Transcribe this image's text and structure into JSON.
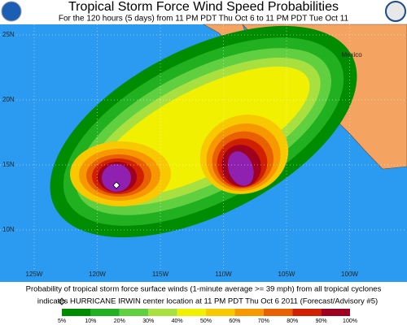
{
  "header": {
    "title": "Tropical Storm Force Wind Speed Probabilities",
    "subtitle": "For the 120 hours (5 days) from 11 PM PDT Thu Oct 6 to 11 PM PDT Tue Oct 11"
  },
  "map": {
    "latitude_labels": [
      "25N",
      "20N",
      "15N",
      "10N"
    ],
    "longitude_labels": [
      "125W",
      "120W",
      "115W",
      "110W",
      "105W",
      "100W"
    ],
    "place_label": "Mexico"
  },
  "footer": {
    "description": "Probability of tropical storm force surface winds (1-minute average >= 39 mph) from all tropical cyclones",
    "note": "indicates HURRICANE IRWIN center location at 11 PM PDT Thu Oct 6 2011 (Forecast/Advisory #5)"
  },
  "legend": {
    "labels": [
      "5%",
      "10%",
      "20%",
      "30%",
      "40%",
      "50%",
      "60%",
      "70%",
      "80%",
      "90%",
      "100%"
    ],
    "colors": [
      "#008c00",
      "#20b020",
      "#60d040",
      "#a8e040",
      "#f0f000",
      "#f8c800",
      "#f89800",
      "#e86000",
      "#d02000",
      "#a00020",
      "#9020b0"
    ]
  }
}
